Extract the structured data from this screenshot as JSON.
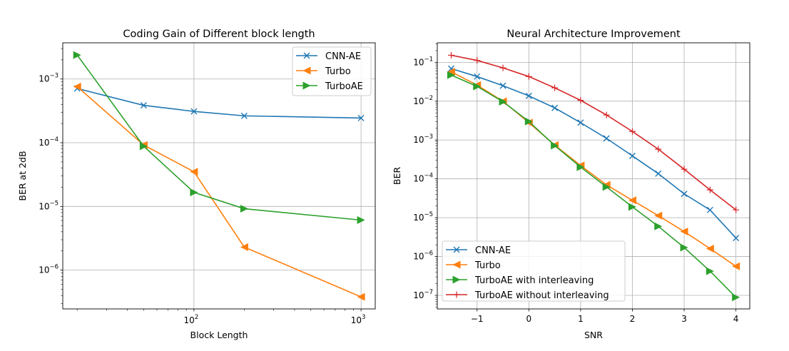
{
  "chart_data": [
    {
      "type": "line",
      "title": "Coding Gain of Different block length",
      "xlabel": "Block Length",
      "ylabel": "BER at 2dB",
      "xscale": "log",
      "yscale": "log",
      "xlim": [
        16.4,
        1216
      ],
      "ylim": [
        2.46e-07,
        0.0037
      ],
      "xticks": [
        {
          "v": 100,
          "base": "10",
          "exp": "2"
        },
        {
          "v": 1000,
          "base": "10",
          "exp": "3"
        }
      ],
      "yticks": [
        {
          "v": 0.001,
          "base": "10",
          "exp": "−3"
        },
        {
          "v": 0.0001,
          "base": "10",
          "exp": "−4"
        },
        {
          "v": 1e-05,
          "base": "10",
          "exp": "−5"
        },
        {
          "v": 1e-06,
          "base": "10",
          "exp": "−6"
        }
      ],
      "grid": true,
      "legend_position": "top-right",
      "x": [
        20,
        50,
        100,
        200,
        1000
      ],
      "series": [
        {
          "name": "CNN-AE",
          "color": "#1f77b4",
          "marker": "x",
          "values": [
            0.00071,
            0.000386,
            0.00031,
            0.000264,
            0.000244
          ]
        },
        {
          "name": "Turbo",
          "color": "#ff7f0e",
          "marker": "triangle-left",
          "values": [
            0.00076,
            9.2e-05,
            3.5e-05,
            2.3e-06,
            3.8e-07
          ]
        },
        {
          "name": "TurboAE",
          "color": "#2ca02c",
          "marker": "triangle-right",
          "values": [
            0.00238,
            8.8e-05,
            1.66e-05,
            9.2e-06,
            6.1e-06
          ]
        }
      ]
    },
    {
      "type": "line",
      "title": "Neural Architecture Improvement",
      "xlabel": "SNR",
      "ylabel": "BER",
      "xscale": "linear",
      "yscale": "log",
      "xlim": [
        -1.768,
        4.267
      ],
      "ylim": [
        4.48e-08,
        0.318
      ],
      "xticks": [
        {
          "v": -1,
          "label": "−1"
        },
        {
          "v": 0,
          "label": "0"
        },
        {
          "v": 1,
          "label": "1"
        },
        {
          "v": 2,
          "label": "2"
        },
        {
          "v": 3,
          "label": "3"
        },
        {
          "v": 4,
          "label": "4"
        }
      ],
      "yticks": [
        {
          "v": 0.1,
          "base": "10",
          "exp": "−1"
        },
        {
          "v": 0.01,
          "base": "10",
          "exp": "−2"
        },
        {
          "v": 0.001,
          "base": "10",
          "exp": "−3"
        },
        {
          "v": 0.0001,
          "base": "10",
          "exp": "−4"
        },
        {
          "v": 1e-05,
          "base": "10",
          "exp": "−5"
        },
        {
          "v": 1e-06,
          "base": "10",
          "exp": "−6"
        },
        {
          "v": 1e-07,
          "base": "10",
          "exp": "−7"
        }
      ],
      "grid": true,
      "legend_position": "lower-left",
      "x": [
        -1.5,
        -1,
        -0.5,
        0,
        0.5,
        1,
        1.5,
        2,
        2.5,
        3,
        3.5,
        4
      ],
      "series": [
        {
          "name": "CNN-AE",
          "color": "#1f77b4",
          "marker": "x",
          "values": [
            0.069,
            0.043,
            0.025,
            0.0137,
            0.0067,
            0.0028,
            0.0011,
            0.00039,
            0.000136,
            4.1e-05,
            1.58e-05,
            3e-06
          ]
        },
        {
          "name": "Turbo",
          "color": "#ff7f0e",
          "marker": "triangle-left",
          "values": [
            0.057,
            0.026,
            0.0099,
            0.0028,
            0.00074,
            0.00022,
            7e-05,
            2.8e-05,
            1.13e-05,
            4.4e-06,
            1.6e-06,
            5.6e-07
          ]
        },
        {
          "name": "TurboAE with interleaving",
          "color": "#2ca02c",
          "marker": "triangle-right",
          "values": [
            0.047,
            0.024,
            0.0097,
            0.003,
            0.00072,
            0.0002,
            6.2e-05,
            1.9e-05,
            6e-06,
            1.7e-06,
            4.2e-07,
            8.9e-08
          ]
        },
        {
          "name": "TurboAE without interleaving",
          "color": "#d62728",
          "marker": "plus",
          "values": [
            0.152,
            0.112,
            0.072,
            0.043,
            0.022,
            0.0105,
            0.0044,
            0.00166,
            0.00058,
            0.000177,
            5.2e-05,
            1.59e-05
          ]
        }
      ]
    }
  ]
}
